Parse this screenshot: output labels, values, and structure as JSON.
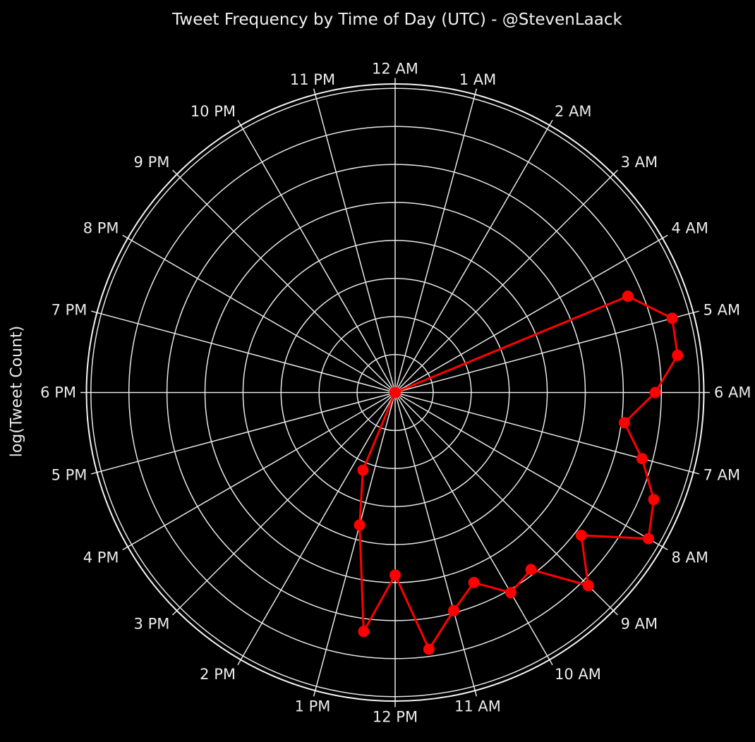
{
  "title": "Tweet Frequency by Time of Day (UTC) - @StevenLaack",
  "radial_axis_label": "log(Tweet Count)",
  "colors": {
    "background": "#000000",
    "grid": "#e8e8e8",
    "spine": "#f5f5f5",
    "series": "#ff0000",
    "tick_label": "#ebebeb",
    "title": "#f2f2f2"
  },
  "chart_data": {
    "type": "line",
    "projection": "polar",
    "direction": "clockwise",
    "zero_location": "top",
    "title": "Tweet Frequency by Time of Day (UTC) - @StevenLaack",
    "radial_label": "log(Tweet Count)",
    "angular_tick_labels": [
      "12 AM",
      "1 AM",
      "2 AM",
      "3 AM",
      "4 AM",
      "5 AM",
      "6 AM",
      "7 AM",
      "8 AM",
      "9 AM",
      "10 AM",
      "11 AM",
      "12 PM",
      "1 PM",
      "2 PM",
      "3 PM",
      "4 PM",
      "5 PM",
      "6 PM",
      "7 PM",
      "8 PM",
      "9 PM",
      "10 PM",
      "11 PM"
    ],
    "radial_gridline_count": 8,
    "radial_tick_labels_shown": false,
    "rlim_gridline_units": [
      0,
      8
    ],
    "grid": true,
    "legend": false,
    "x_hours": [
      0,
      0.5,
      1,
      1.5,
      2,
      2.5,
      3,
      3.5,
      4,
      4.5,
      5,
      5.5,
      6,
      6.5,
      7,
      7.5,
      8,
      8.5,
      9,
      9.5,
      10,
      10.5,
      11,
      11.5,
      12,
      12.5,
      13,
      13.5,
      14,
      14.5,
      15,
      15.5,
      16,
      16.5,
      17,
      17.5,
      18,
      18.5,
      19,
      19.5,
      20,
      20.5,
      21,
      21.5,
      22,
      22.5,
      23,
      23.5
    ],
    "series": [
      {
        "name": "log(Tweet Count)",
        "marker": "circle",
        "values_gridline_units": [
          0,
          0,
          0,
          0,
          0,
          0,
          0,
          0,
          0,
          6.62,
          7.54,
          7.49,
          6.84,
          6.08,
          6.72,
          7.36,
          7.69,
          6.17,
          7.18,
          5.87,
          6.08,
          5.41,
          5.94,
          6.81,
          4.8,
          6.34,
          3.61,
          2.21,
          0,
          0,
          0,
          0,
          0,
          0,
          0,
          0,
          0,
          0,
          0,
          0,
          0,
          0,
          0,
          0,
          0,
          0,
          0,
          0
        ]
      }
    ]
  }
}
